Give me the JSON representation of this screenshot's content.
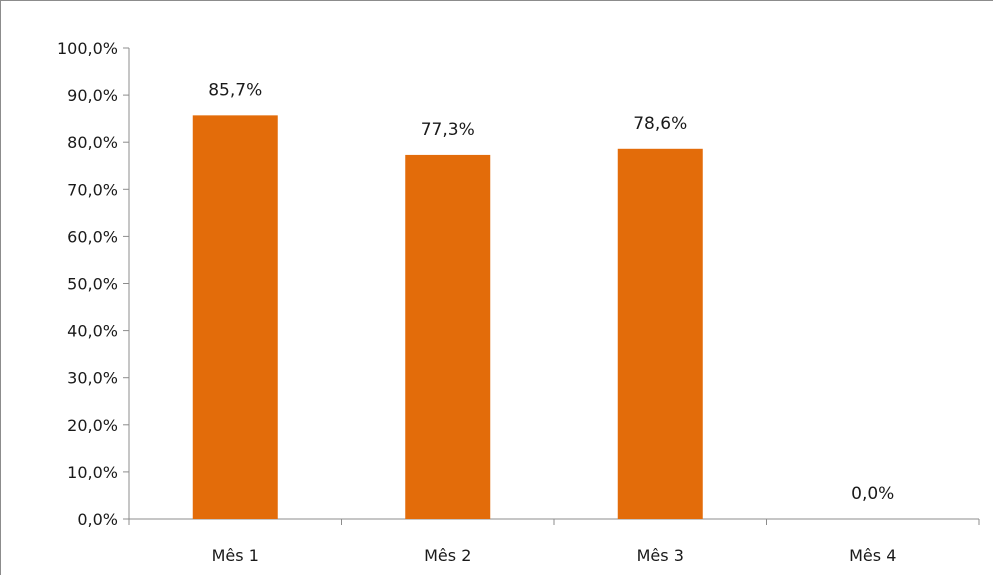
{
  "chart_data": {
    "type": "bar",
    "title": "",
    "xlabel": "",
    "ylabel": "",
    "categories": [
      "Mês 1",
      "Mês 2",
      "Mês 3",
      "Mês 4"
    ],
    "values": [
      85.7,
      77.3,
      78.6,
      0.0
    ],
    "data_labels": [
      "85,7%",
      "77,3%",
      "78,6%",
      "0,0%"
    ],
    "ylim": [
      0,
      100
    ],
    "yticks": [
      0,
      10,
      20,
      30,
      40,
      50,
      60,
      70,
      80,
      90,
      100
    ],
    "ytick_labels": [
      "0,0%",
      "10,0%",
      "20,0%",
      "30,0%",
      "40,0%",
      "50,0%",
      "60,0%",
      "70,0%",
      "80,0%",
      "90,0%",
      "100,0%"
    ],
    "grid": false,
    "legend": "none",
    "bar_color": "#E36C0A"
  }
}
